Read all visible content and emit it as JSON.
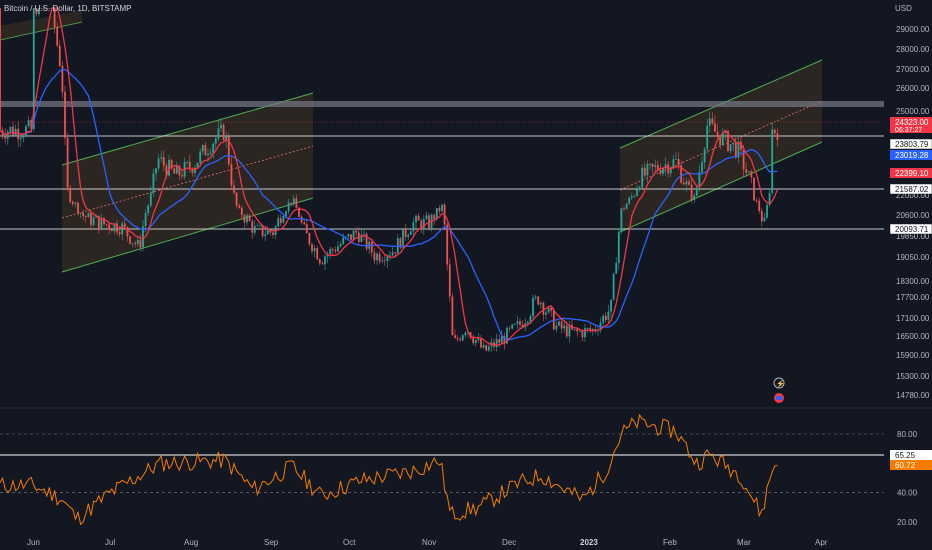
{
  "header": {
    "symbol_line": "Bitcoin / U.S. Dollar, 1D, BITSTAMP"
  },
  "price_axis": {
    "currency": "USD",
    "ticks": [
      29000,
      28000,
      27000,
      26000,
      25000,
      22000,
      20600,
      19850,
      19050,
      18300,
      17700,
      17100,
      16500,
      15900,
      15300,
      14780
    ]
  },
  "price_labels": [
    {
      "text": "24323.00",
      "sub": "06:37:27",
      "color": "#f23645"
    },
    {
      "text": "23803.79",
      "color": "#ffffff"
    },
    {
      "text": "23019.28",
      "color": "#2962ff"
    },
    {
      "text": "22399.10",
      "color": "#f23645"
    },
    {
      "text": "21587.02",
      "color": "#ffffff"
    },
    {
      "text": "20093.71",
      "color": "#ffffff"
    }
  ],
  "rsi_panel": {
    "ticks": [
      80.0,
      60.0,
      40.0,
      20.0
    ],
    "labels": [
      {
        "text": "65.25",
        "color": "#ffffff"
      },
      {
        "text": "60.72",
        "color": "#f57c00"
      }
    ]
  },
  "time_axis": [
    "Jun",
    "Jul",
    "Aug",
    "Sep",
    "Oct",
    "Nov",
    "Dec",
    "2023",
    "Feb",
    "Mar",
    "Apr"
  ],
  "colors": {
    "up": "#26a69a",
    "down": "#ef5350",
    "ma_fast": "#f23645",
    "ma_slow": "#2962ff",
    "rsi": "#f57c00",
    "channel": "#4caf50"
  },
  "chart_data": {
    "type": "line",
    "description_series": [
      {
        "name": "BTCUSD close",
        "x": [
          "2022-06-01",
          "2022-06-08",
          "2022-06-12",
          "2022-06-14",
          "2022-06-20",
          "2022-06-27",
          "2022-07-05",
          "2022-07-12",
          "2022-07-19",
          "2022-07-26",
          "2022-08-02",
          "2022-08-09",
          "2022-08-14",
          "2022-08-19",
          "2022-08-26",
          "2022-09-02",
          "2022-09-09",
          "2022-09-13",
          "2022-09-20",
          "2022-09-27",
          "2022-10-04",
          "2022-10-11",
          "2022-10-18",
          "2022-10-25",
          "2022-11-01",
          "2022-11-06",
          "2022-11-08",
          "2022-11-10",
          "2022-11-15",
          "2022-11-22",
          "2022-11-29",
          "2022-12-06",
          "2022-12-13",
          "2022-12-20",
          "2022-12-27",
          "2023-01-03",
          "2023-01-10",
          "2023-01-14",
          "2023-01-21",
          "2023-01-28",
          "2023-02-04",
          "2023-02-11",
          "2023-02-16",
          "2023-02-21",
          "2023-02-28",
          "2023-03-05",
          "2023-03-09",
          "2023-03-10",
          "2023-03-12",
          "2023-03-13",
          "2023-03-14",
          "2023-03-15"
        ],
        "y": [
          29800,
          30200,
          26800,
          22200,
          20600,
          20300,
          20200,
          19400,
          23300,
          22700,
          23100,
          23900,
          24300,
          20900,
          20000,
          20000,
          21700,
          20100,
          19000,
          19500,
          20000,
          19100,
          19300,
          20300,
          20300,
          21200,
          18500,
          16200,
          16800,
          16000,
          16400,
          16900,
          17700,
          16800,
          16600,
          16700,
          17400,
          20900,
          22600,
          23000,
          23200,
          21700,
          24500,
          24100,
          23600,
          22400,
          20600,
          20100,
          21900,
          24300,
          24300,
          24323
        ]
      }
    ],
    "rsi_series": {
      "name": "RSI",
      "x": [
        "2022-06-01",
        "2022-06-12",
        "2022-06-18",
        "2022-07-01",
        "2022-07-20",
        "2022-08-14",
        "2022-08-25",
        "2022-09-09",
        "2022-09-20",
        "2022-10-05",
        "2022-10-26",
        "2022-11-05",
        "2022-11-09",
        "2022-11-20",
        "2022-12-05",
        "2022-12-14",
        "2022-12-30",
        "2023-01-08",
        "2023-01-14",
        "2023-01-20",
        "2023-02-04",
        "2023-02-12",
        "2023-02-17",
        "2023-03-01",
        "2023-03-09",
        "2023-03-13",
        "2023-03-15"
      ],
      "y": [
        45,
        36,
        22,
        40,
        60,
        62,
        42,
        58,
        38,
        48,
        55,
        62,
        25,
        30,
        46,
        52,
        35,
        55,
        80,
        88,
        82,
        60,
        66,
        52,
        25,
        55,
        61
      ]
    },
    "xlabel": "",
    "ylabel": "",
    "ylim": [
      14500,
      29700
    ],
    "grid": false
  }
}
